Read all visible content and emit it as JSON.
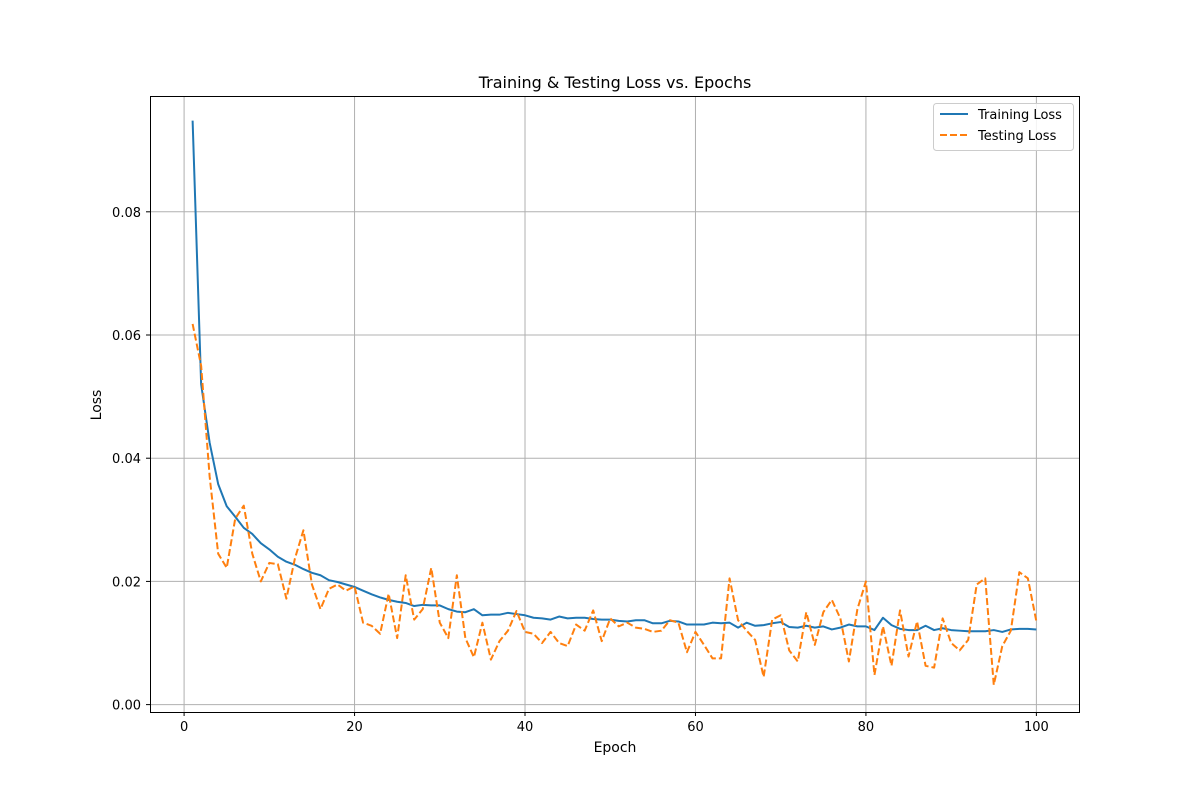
{
  "chart_data": {
    "type": "line",
    "title": "Training & Testing Loss vs. Epochs",
    "xlabel": "Epoch",
    "ylabel": "Loss",
    "xlim": [
      -4,
      105
    ],
    "ylim": [
      -0.0012,
      0.0988
    ],
    "xticks": [
      0,
      20,
      40,
      60,
      80,
      100
    ],
    "yticks": [
      0.0,
      0.02,
      0.04,
      0.06,
      0.08
    ],
    "ytick_labels": [
      "0.00",
      "0.02",
      "0.04",
      "0.06",
      "0.08"
    ],
    "grid": true,
    "legend_position": "top-right",
    "x": [
      1,
      2,
      3,
      4,
      5,
      6,
      7,
      8,
      9,
      10,
      11,
      12,
      13,
      14,
      15,
      16,
      17,
      18,
      19,
      20,
      21,
      22,
      23,
      24,
      25,
      26,
      27,
      28,
      29,
      30,
      31,
      32,
      33,
      34,
      35,
      36,
      37,
      38,
      39,
      40,
      41,
      42,
      43,
      44,
      45,
      46,
      47,
      48,
      49,
      50,
      51,
      52,
      53,
      54,
      55,
      56,
      57,
      58,
      59,
      60,
      61,
      62,
      63,
      64,
      65,
      66,
      67,
      68,
      69,
      70,
      71,
      72,
      73,
      74,
      75,
      76,
      77,
      78,
      79,
      80,
      81,
      82,
      83,
      84,
      85,
      86,
      87,
      88,
      89,
      90,
      91,
      92,
      93,
      94,
      95,
      96,
      97,
      98,
      99,
      100
    ],
    "series": [
      {
        "name": "Training Loss",
        "color": "#1f77b4",
        "style": "solid",
        "values": [
          0.0948,
          0.052,
          0.0425,
          0.0358,
          0.0322,
          0.0305,
          0.0287,
          0.0277,
          0.0262,
          0.0252,
          0.024,
          0.0232,
          0.0227,
          0.022,
          0.0214,
          0.021,
          0.0202,
          0.0199,
          0.0195,
          0.0191,
          0.0185,
          0.0179,
          0.0174,
          0.017,
          0.0167,
          0.0165,
          0.016,
          0.0162,
          0.0161,
          0.0161,
          0.0155,
          0.0151,
          0.015,
          0.0155,
          0.0145,
          0.0146,
          0.0146,
          0.0149,
          0.0147,
          0.0145,
          0.0141,
          0.014,
          0.0138,
          0.0143,
          0.014,
          0.0141,
          0.0141,
          0.0139,
          0.0138,
          0.0138,
          0.0136,
          0.0135,
          0.0137,
          0.0137,
          0.0132,
          0.0132,
          0.0136,
          0.0135,
          0.013,
          0.013,
          0.013,
          0.0133,
          0.0132,
          0.0133,
          0.0125,
          0.0133,
          0.0128,
          0.0129,
          0.0132,
          0.0134,
          0.0126,
          0.0125,
          0.0128,
          0.0125,
          0.0127,
          0.0122,
          0.0125,
          0.013,
          0.0127,
          0.0127,
          0.0121,
          0.0141,
          0.0129,
          0.0123,
          0.0121,
          0.0121,
          0.0128,
          0.0121,
          0.0124,
          0.0121,
          0.012,
          0.0119,
          0.0119,
          0.0119,
          0.0121,
          0.0118,
          0.0122,
          0.0123,
          0.0123,
          0.0122
        ]
      },
      {
        "name": "Testing Loss",
        "color": "#ff7f0e",
        "style": "dashed",
        "values": [
          0.0618,
          0.055,
          0.037,
          0.0245,
          0.0222,
          0.0302,
          0.0323,
          0.0245,
          0.02,
          0.023,
          0.0228,
          0.0172,
          0.0237,
          0.0283,
          0.0195,
          0.0155,
          0.0188,
          0.0195,
          0.0185,
          0.0192,
          0.0133,
          0.0128,
          0.0115,
          0.018,
          0.0108,
          0.021,
          0.0138,
          0.0155,
          0.0222,
          0.0133,
          0.0108,
          0.021,
          0.0108,
          0.0077,
          0.0133,
          0.0073,
          0.0103,
          0.012,
          0.0152,
          0.0118,
          0.0115,
          0.01,
          0.0118,
          0.01,
          0.0095,
          0.013,
          0.012,
          0.0153,
          0.0103,
          0.014,
          0.0127,
          0.0133,
          0.0125,
          0.0123,
          0.0118,
          0.012,
          0.0137,
          0.0133,
          0.0085,
          0.0118,
          0.0097,
          0.0075,
          0.0075,
          0.0205,
          0.0137,
          0.012,
          0.0105,
          0.0045,
          0.0138,
          0.0145,
          0.0088,
          0.007,
          0.015,
          0.0097,
          0.015,
          0.017,
          0.014,
          0.007,
          0.0155,
          0.02,
          0.0048,
          0.0127,
          0.0063,
          0.0153,
          0.0078,
          0.0135,
          0.0063,
          0.006,
          0.014,
          0.01,
          0.0088,
          0.0105,
          0.0195,
          0.0205,
          0.0032,
          0.0095,
          0.012,
          0.0215,
          0.0205,
          0.0135
        ]
      }
    ]
  }
}
